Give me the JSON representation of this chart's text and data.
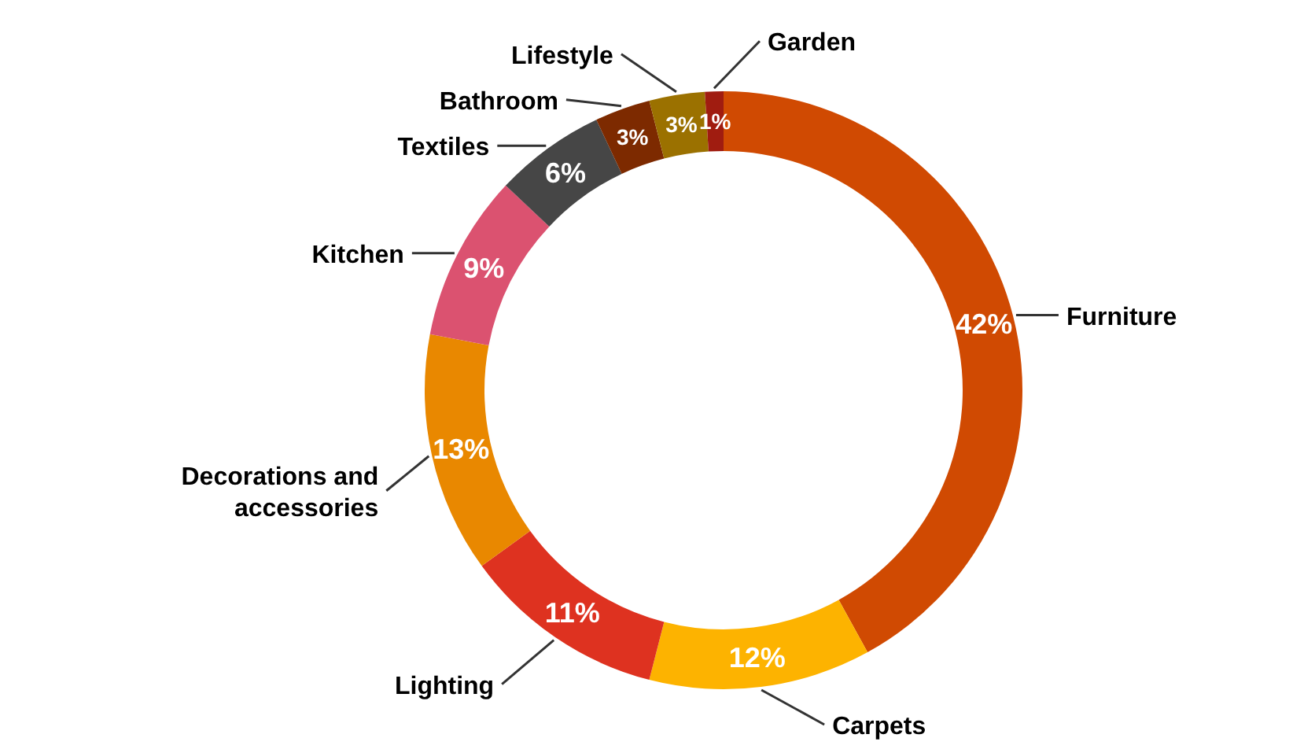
{
  "chart_data": {
    "type": "donut",
    "categories": [
      "Furniture",
      "Carpets",
      "Lighting",
      "Decorations and accessories",
      "Kitchen",
      "Textiles",
      "Bathroom",
      "Lifestyle",
      "Garden"
    ],
    "values": [
      42,
      12,
      11,
      13,
      9,
      6,
      3,
      3,
      1
    ],
    "value_labels": [
      "42%",
      "12%",
      "11%",
      "13%",
      "9%",
      "6%",
      "3%",
      "3%",
      "1%"
    ],
    "colors": [
      "#d04a02",
      "#fdb300",
      "#de3220",
      "#e98800",
      "#db5270",
      "#464646",
      "#7d2a00",
      "#9b7100",
      "#a01c10"
    ]
  }
}
